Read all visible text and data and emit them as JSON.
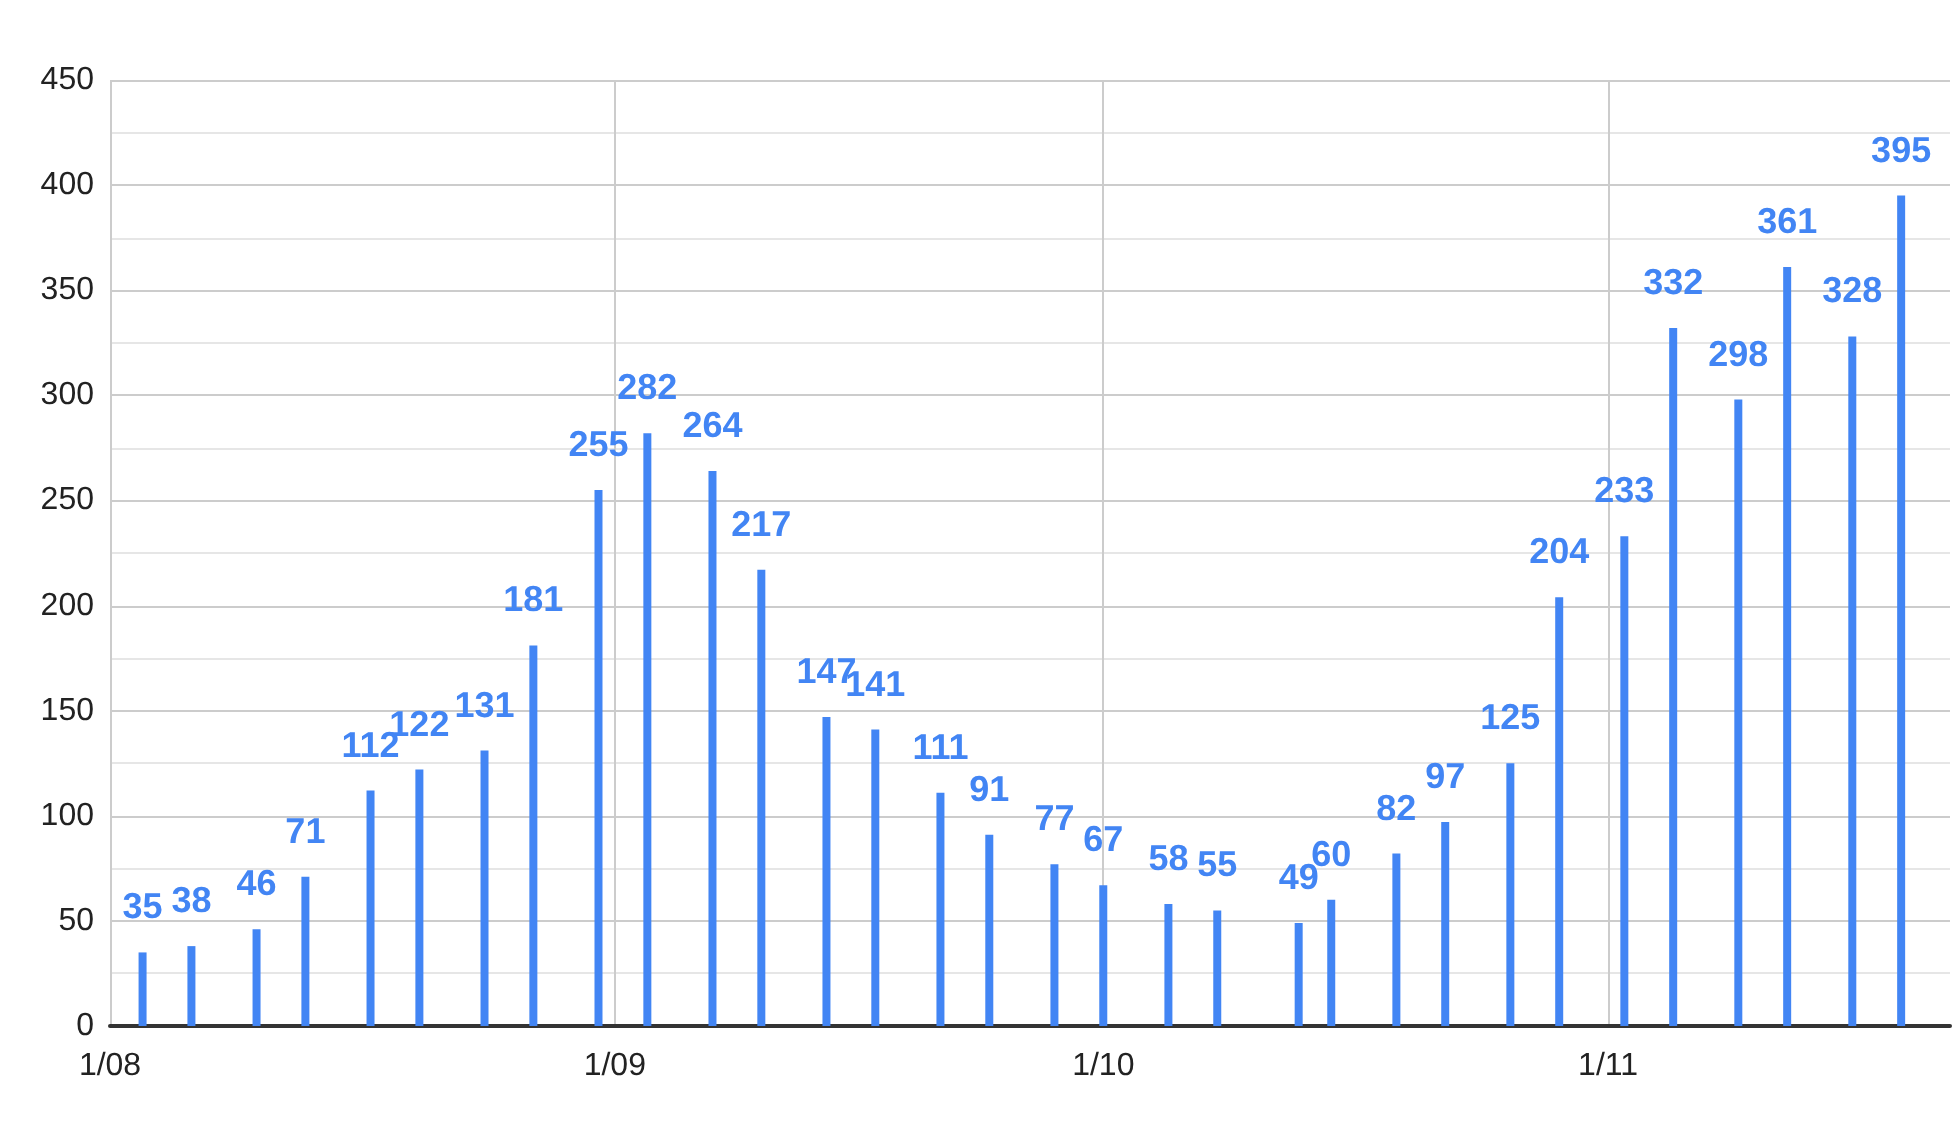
{
  "chart_data": {
    "type": "bar",
    "x": [
      "--08-03",
      "--08-06",
      "--08-10",
      "--08-13",
      "--08-17",
      "--08-20",
      "--08-24",
      "--08-27",
      "--08-31",
      "--09-03",
      "--09-07",
      "--09-10",
      "--09-14",
      "--09-17",
      "--09-21",
      "--09-24",
      "--09-28",
      "--10-01",
      "--10-05",
      "--10-08",
      "--10-13",
      "--10-15",
      "--10-19",
      "--10-22",
      "--10-26",
      "--10-29",
      "--11-02",
      "--11-05",
      "--11-09",
      "--11-12",
      "--11-16",
      "--11-19"
    ],
    "values": [
      35,
      38,
      46,
      71,
      112,
      122,
      131,
      181,
      255,
      282,
      264,
      217,
      147,
      141,
      111,
      91,
      77,
      67,
      58,
      55,
      49,
      60,
      82,
      97,
      125,
      204,
      233,
      332,
      298,
      361,
      328,
      395
    ],
    "color": "#4285f4",
    "data_labels": true,
    "xlim": [
      "--08-01",
      "--11-22"
    ],
    "xticks": [
      {
        "value": "--08-01",
        "label": "1/08"
      },
      {
        "value": "--09-01",
        "label": "1/09"
      },
      {
        "value": "--10-01",
        "label": "1/10"
      },
      {
        "value": "--11-01",
        "label": "1/11"
      }
    ],
    "ylim": [
      0,
      450
    ],
    "yticks": [
      0,
      50,
      100,
      150,
      200,
      250,
      300,
      350,
      400,
      450
    ],
    "grid": true
  }
}
